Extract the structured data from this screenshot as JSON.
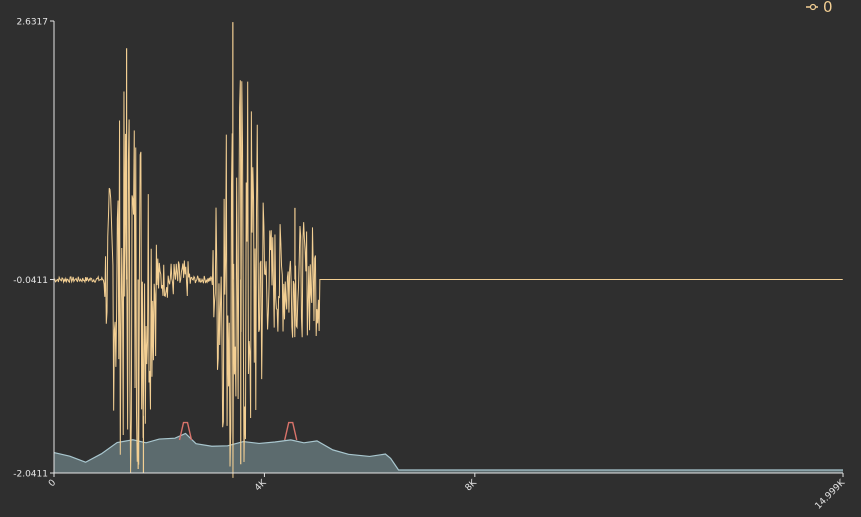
{
  "chart_data": {
    "type": "line",
    "x_ticks": [
      "0",
      "4K",
      "8K",
      "14.999K"
    ],
    "x_tick_values": [
      0,
      4000,
      8000,
      14999
    ],
    "xlim": [
      0,
      14999
    ],
    "y_ticks": [
      "2.6317",
      "-0.0411",
      "-2.0411"
    ],
    "y_tick_values": [
      2.6317,
      -0.0411,
      -2.0411
    ],
    "ylim": [
      -2.0411,
      2.6317
    ],
    "grid": false,
    "legend_position": "top-right",
    "colors": {
      "background": "#2f2f2f",
      "axis": "#e6e6e6",
      "waveform": "#f3cf93",
      "spectrum_fill": "#5c6b6e",
      "spectrum_line": "#a9c7cf",
      "spectrum_peak": "#d9736a"
    },
    "series": [
      {
        "name": "0",
        "kind": "waveform",
        "segments": [
          {
            "start": 0,
            "end": 950,
            "amplitude": 0.03
          },
          {
            "start": 950,
            "end": 2000,
            "amplitude": 2.1
          },
          {
            "start": 2000,
            "end": 2600,
            "amplitude": 0.2
          },
          {
            "start": 2600,
            "end": 3000,
            "amplitude": 0.04
          },
          {
            "start": 3000,
            "end": 4100,
            "amplitude": 2.3
          },
          {
            "start": 4100,
            "end": 5050,
            "amplitude": 0.6
          },
          {
            "start": 5050,
            "end": 14999,
            "amplitude": 0.0
          }
        ],
        "baseline": -0.0411,
        "spikes": [
          {
            "x": 1380,
            "y": 2.35
          },
          {
            "x": 1600,
            "y": -2.0
          },
          {
            "x": 3400,
            "y": 2.62
          },
          {
            "x": 3550,
            "y": -1.95
          },
          {
            "x": 4580,
            "y": 0.7
          }
        ]
      },
      {
        "kind": "spectrum",
        "baseline": -2.0411,
        "points": [
          [
            0,
            -1.83
          ],
          [
            300,
            -1.88
          ],
          [
            600,
            -1.91
          ],
          [
            900,
            -1.86
          ],
          [
            1200,
            -1.72
          ],
          [
            1500,
            -1.69
          ],
          [
            1750,
            -1.72
          ],
          [
            2000,
            -1.68
          ],
          [
            2300,
            -1.7
          ],
          [
            2500,
            -1.62
          ],
          [
            2700,
            -1.74
          ],
          [
            3000,
            -1.75
          ],
          [
            3300,
            -1.78
          ],
          [
            3600,
            -1.7
          ],
          [
            3900,
            -1.74
          ],
          [
            4200,
            -1.73
          ],
          [
            4500,
            -1.68
          ],
          [
            4750,
            -1.71
          ],
          [
            5000,
            -1.69
          ],
          [
            5300,
            -1.82
          ],
          [
            5600,
            -1.84
          ],
          [
            6000,
            -1.85
          ],
          [
            6300,
            -1.86
          ],
          [
            6400,
            -1.89
          ],
          [
            6550,
            -2.01
          ],
          [
            8000,
            -2.01
          ],
          [
            11000,
            -2.01
          ],
          [
            14999,
            -2.01
          ]
        ],
        "peaks": [
          2500,
          4500
        ]
      }
    ],
    "cursor_x": 1700
  }
}
